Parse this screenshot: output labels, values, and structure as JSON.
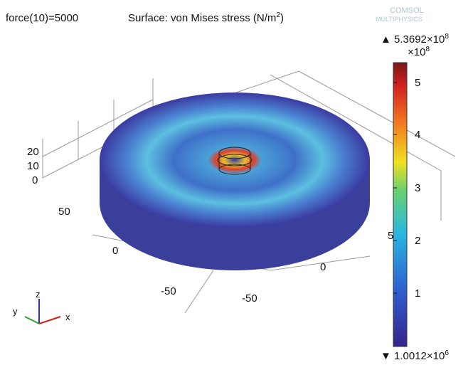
{
  "header": {
    "parameter": "force(10)=5000",
    "plot_title": "Surface: von Mises stress (N/m",
    "title_exponent": "2",
    "title_close": ")",
    "logo": [
      "COMSOL",
      "MULTIPHYSICS"
    ]
  },
  "colorbar": {
    "max_label": "▲ 5.3692×10",
    "max_exp": "8",
    "scale_label": "×10",
    "scale_exp": "8",
    "ticks": [
      "5",
      "4",
      "3",
      "2",
      "1"
    ],
    "min_label": "▼ 1.0012×10",
    "min_exp": "6"
  },
  "axes": {
    "z_ticks": [
      "20",
      "10",
      "0"
    ],
    "left_ticks": [
      "50",
      "0",
      "-50"
    ],
    "right_ticks": [
      "-50",
      "0",
      "5"
    ],
    "triad": [
      "z",
      "y",
      "x"
    ]
  }
}
